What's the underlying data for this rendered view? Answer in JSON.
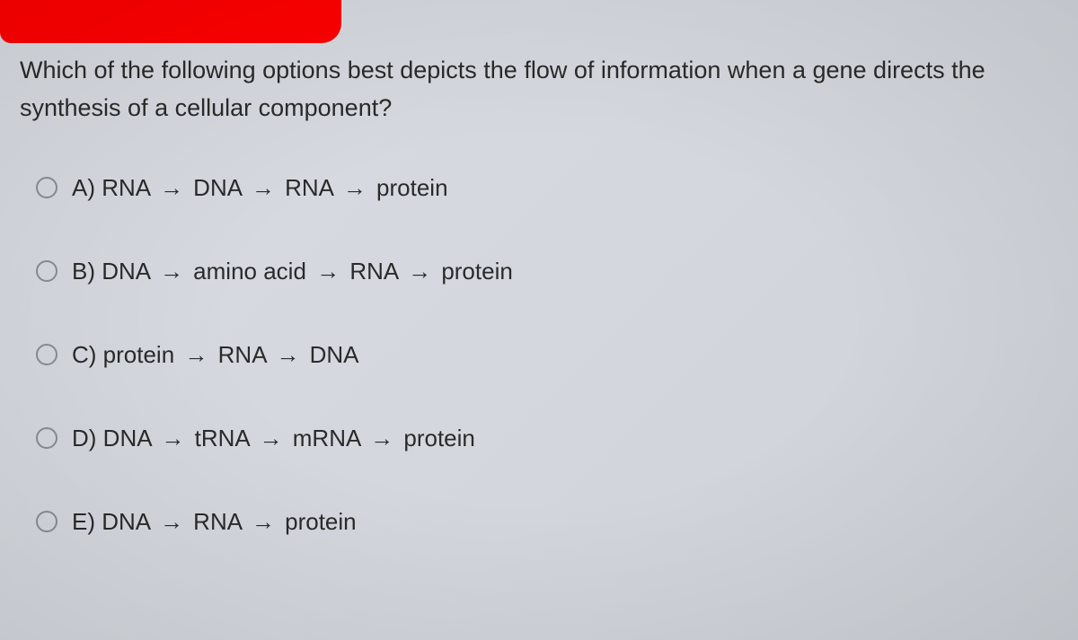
{
  "question": {
    "text": "Which of the following options best depicts the flow of information when a gene directs the synthesis of a cellular component?"
  },
  "arrow_glyph": "→",
  "options": [
    {
      "letter": "A)",
      "parts": [
        "RNA",
        "DNA",
        "RNA",
        "protein"
      ]
    },
    {
      "letter": "B)",
      "parts": [
        "DNA",
        "amino acid",
        "RNA",
        "protein"
      ]
    },
    {
      "letter": "C)",
      "parts": [
        "protein",
        "RNA",
        "DNA"
      ]
    },
    {
      "letter": "D)",
      "parts": [
        "DNA",
        "tRNA",
        "mRNA",
        "protein"
      ]
    },
    {
      "letter": "E)",
      "parts": [
        "DNA",
        "RNA",
        "protein"
      ]
    }
  ],
  "styling": {
    "background_gradient": [
      "#d8dce2",
      "#d4d8de",
      "#ced2d8"
    ],
    "redaction_color": "#ff0000",
    "text_color": "#2a2a2a",
    "radio_border_color": "#8a8e94",
    "question_fontsize": 27,
    "option_fontsize": 26,
    "radio_size": 24,
    "option_gap": 62
  }
}
